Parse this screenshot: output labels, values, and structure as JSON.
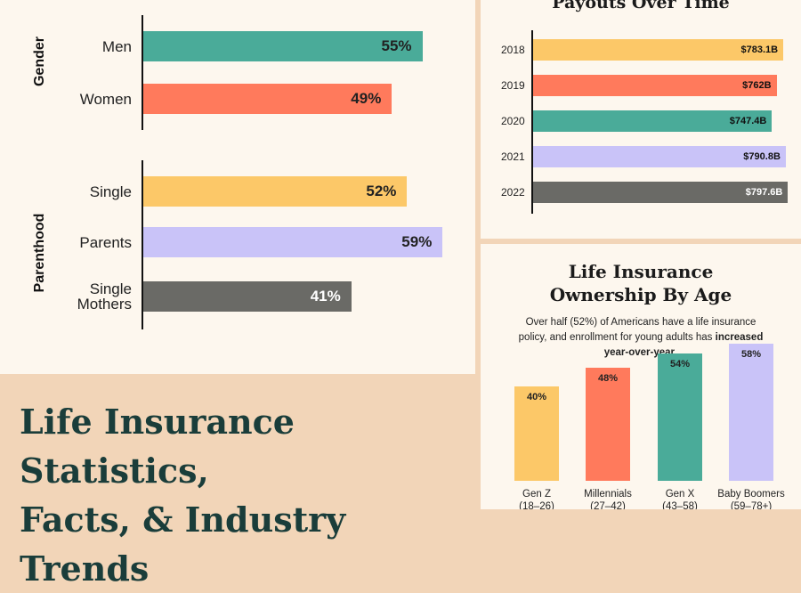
{
  "headline": [
    "Life Insurance Statistics,",
    "Facts, & Industry Trends"
  ],
  "chart_data": [
    {
      "type": "bar",
      "orientation": "horizontal",
      "groups": [
        {
          "label": "Gender",
          "categories": [
            {
              "label": "Men",
              "value": 55,
              "display": "55%",
              "color": "#4aab99"
            },
            {
              "label": "Women",
              "value": 49,
              "display": "49%",
              "color": "#ff7a5c"
            }
          ]
        },
        {
          "label": "Parenthood",
          "categories": [
            {
              "label": "Single",
              "value": 52,
              "display": "52%",
              "color": "#fcc868"
            },
            {
              "label": "Parents",
              "value": 59,
              "display": "59%",
              "color": "#c9c3f8"
            },
            {
              "label": "Single Mothers",
              "value": 41,
              "display": "41%",
              "color": "#6a6a66"
            }
          ]
        }
      ]
    },
    {
      "type": "bar",
      "orientation": "horizontal",
      "title": "Payouts Over Time",
      "categories": [
        "2018",
        "2019",
        "2020",
        "2021",
        "2022"
      ],
      "values": [
        783.1,
        762,
        747.4,
        790.8,
        797.6
      ],
      "value_labels": [
        "$783.1B",
        "$762B",
        "$747.4B",
        "$790.8B",
        "$797.6B"
      ],
      "colors": [
        "#fcc868",
        "#ff7a5c",
        "#4aab99",
        "#c9c3f8",
        "#6a6a66"
      ]
    },
    {
      "type": "bar",
      "title": "Life Insurance Ownership By Age",
      "description": {
        "text": "Over half (52%) of Americans have a life insurance policy, and enrollment for young adults has",
        "emphasis": "increased year-over-year",
        "end": "."
      },
      "categories": [
        {
          "name": "Gen Z",
          "range": "(18–26)"
        },
        {
          "name": "Millennials",
          "range": "(27–42)"
        },
        {
          "name": "Gen X",
          "range": "(43–58)"
        },
        {
          "name": "Baby Boomers",
          "range": "(59–78+)"
        }
      ],
      "values": [
        40,
        48,
        54,
        58
      ],
      "value_labels": [
        "40%",
        "48%",
        "54%",
        "58%"
      ],
      "colors": [
        "#fcc868",
        "#ff7a5c",
        "#4aab99",
        "#c9c3f8"
      ]
    }
  ]
}
